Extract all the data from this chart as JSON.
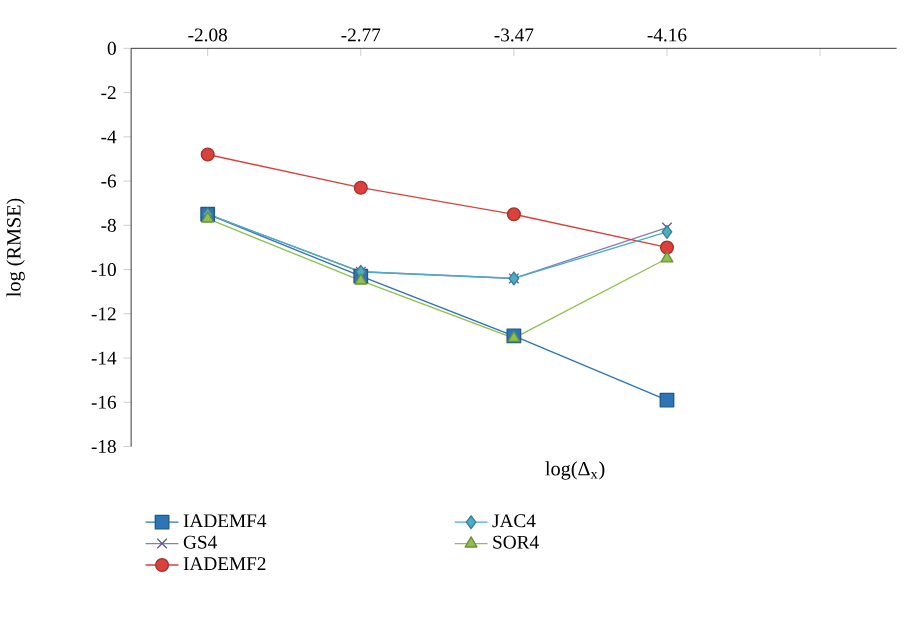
{
  "chart_data": {
    "type": "line",
    "xlabel": "log(Δ$_{x}$)",
    "ylabel": "log (RMSE)",
    "categories": [
      "-2.08",
      "-2.77",
      "-3.47",
      "-4.16",
      null
    ],
    "ylim": [
      -18,
      0
    ],
    "yticks": [
      -18,
      -16,
      -14,
      -12,
      -10,
      -8,
      -6,
      -4,
      -2,
      0
    ],
    "grid": false,
    "legend": "bottom",
    "series": [
      {
        "name": "IADEMF4",
        "color": "#2e75b6",
        "marker": "square",
        "values": [
          -7.5,
          -10.3,
          -13.0,
          -15.9,
          null
        ]
      },
      {
        "name": "GS4",
        "color": "#7f7fbf",
        "marker": "cross",
        "values": [
          -7.5,
          -10.1,
          -10.4,
          -8.1,
          null
        ]
      },
      {
        "name": "IADEMF2",
        "color": "#d9413a",
        "marker": "circle",
        "values": [
          -4.8,
          -6.3,
          -7.5,
          -9.0,
          null
        ]
      },
      {
        "name": "JAC4",
        "color": "#4bacc6",
        "marker": "diamond",
        "values": [
          -7.5,
          -10.1,
          -10.4,
          -8.3,
          null
        ]
      },
      {
        "name": "SOR4",
        "color": "#8fc04f",
        "marker": "triangle",
        "values": [
          -7.7,
          -10.5,
          -13.1,
          -9.5,
          null
        ]
      }
    ]
  }
}
